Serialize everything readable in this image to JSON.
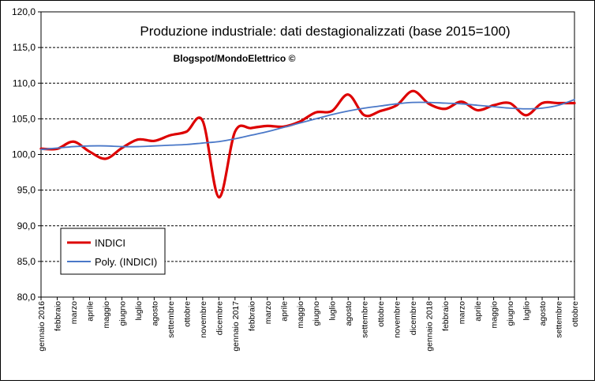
{
  "chart_data": {
    "type": "line",
    "title": "Produzione industriale: dati destagionalizzati (base 2015=100)",
    "watermark": "Blogspot/MondoElettrico ©",
    "xlabel": "",
    "ylabel": "",
    "ylim": [
      80,
      120
    ],
    "y_ticks": [
      "80,0",
      "85,0",
      "90,0",
      "95,0",
      "100,0",
      "105,0",
      "110,0",
      "115,0",
      "120,0"
    ],
    "categories": [
      "gennaio 2016",
      "febbraio",
      "marzo",
      "aprile",
      "maggio",
      "giugno",
      "luglio",
      "agosto",
      "settembre",
      "ottobre",
      "novembre",
      "dicembre",
      "gennaio 2017",
      "febbraio",
      "marzo",
      "aprile",
      "maggio",
      "giugno",
      "luglio",
      "agosto",
      "settembre",
      "ottobre",
      "novembre",
      "dicembre",
      "gennaio 2018",
      "febbraio",
      "marzo",
      "aprile",
      "maggio",
      "giugno",
      "luglio",
      "agosto",
      "settembre",
      "ottobre"
    ],
    "series": [
      {
        "name": "INDICI",
        "color": "#dd0000",
        "values": [
          100.8,
          100.8,
          101.8,
          100.4,
          99.4,
          100.9,
          102.1,
          101.9,
          102.7,
          103.2,
          104.7,
          94.0,
          103.2,
          103.7,
          104.0,
          103.9,
          104.6,
          105.9,
          106.1,
          108.4,
          105.5,
          106.1,
          106.9,
          108.9,
          107.1,
          106.4,
          107.4,
          106.2,
          106.9,
          107.2,
          105.5,
          107.2,
          107.2,
          107.2
        ]
      },
      {
        "name": "Poly. (INDICI)",
        "color": "#4a78c8",
        "values": [
          100.7,
          100.9,
          101.1,
          101.2,
          101.2,
          101.1,
          101.1,
          101.2,
          101.3,
          101.4,
          101.6,
          101.8,
          102.2,
          102.7,
          103.2,
          103.8,
          104.4,
          105.0,
          105.6,
          106.1,
          106.5,
          106.8,
          107.1,
          107.3,
          107.3,
          107.2,
          107.1,
          106.9,
          106.7,
          106.5,
          106.4,
          106.5,
          106.9,
          107.7
        ]
      }
    ],
    "legend": [
      {
        "label": "INDICI",
        "color": "#dd0000"
      },
      {
        "label": "Poly. (INDICI)",
        "color": "#4a78c8"
      }
    ],
    "grid": "horizontal dashed",
    "legend_position": "lower-left"
  }
}
